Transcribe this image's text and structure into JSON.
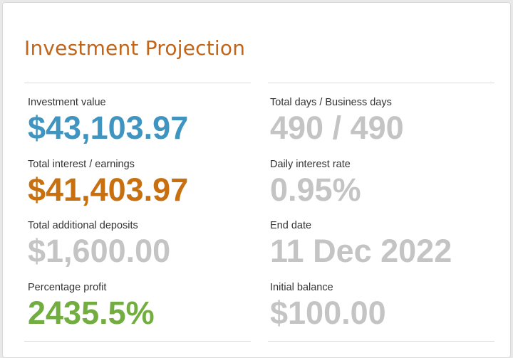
{
  "title": "Investment Projection",
  "colors": {
    "title": "#c0651a",
    "blue": "#3f95c0",
    "orange": "#c8700f",
    "green": "#72ad3f",
    "gray": "#c4c4c4"
  },
  "left": [
    {
      "label": "Investment value",
      "value": "$43,103.97",
      "color": "blue"
    },
    {
      "label": "Total interest / earnings",
      "value": "$41,403.97",
      "color": "orange"
    },
    {
      "label": "Total additional deposits",
      "value": "$1,600.00",
      "color": "gray"
    },
    {
      "label": "Percentage profit",
      "value": "2435.5%",
      "color": "green"
    }
  ],
  "right": [
    {
      "label": "Total days / Business days",
      "value": "490 / 490",
      "color": "gray"
    },
    {
      "label": "Daily interest rate",
      "value": "0.95%",
      "color": "gray"
    },
    {
      "label": "End date",
      "value": "11 Dec 2022",
      "color": "gray"
    },
    {
      "label": "Initial balance",
      "value": "$100.00",
      "color": "gray"
    }
  ]
}
